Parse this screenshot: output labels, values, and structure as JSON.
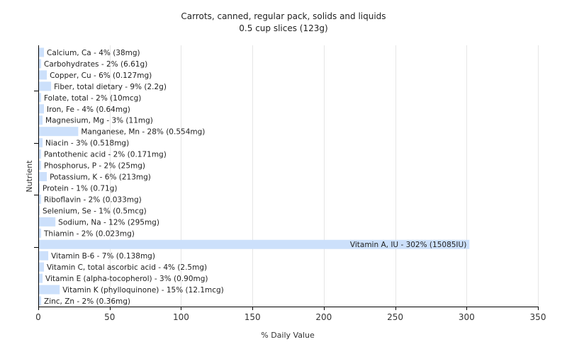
{
  "chart_data": {
    "type": "bar",
    "orientation": "horizontal",
    "title": "Carrots, canned, regular pack, solids and liquids",
    "subtitle": "0.5 cup slices (123g)",
    "xlabel": "% Daily Value",
    "ylabel": "Nutrient",
    "xlim": [
      0,
      350
    ],
    "xticks": [
      0,
      50,
      100,
      150,
      200,
      250,
      300,
      350
    ],
    "grid": "vertical",
    "bar_color": "#cce0fb",
    "categories": [
      "Calcium, Ca",
      "Carbohydrates",
      "Copper, Cu",
      "Fiber, total dietary",
      "Folate, total",
      "Iron, Fe",
      "Magnesium, Mg",
      "Manganese, Mn",
      "Niacin",
      "Pantothenic acid",
      "Phosphorus, P",
      "Potassium, K",
      "Protein",
      "Riboflavin",
      "Selenium, Se",
      "Sodium, Na",
      "Thiamin",
      "Vitamin A, IU",
      "Vitamin B-6",
      "Vitamin C, total ascorbic acid",
      "Vitamin E (alpha-tocopherol)",
      "Vitamin K (phylloquinone)",
      "Zinc, Zn"
    ],
    "values": [
      4,
      2,
      6,
      9,
      2,
      4,
      3,
      28,
      3,
      2,
      2,
      6,
      1,
      2,
      1,
      12,
      2,
      302,
      7,
      4,
      3,
      15,
      2
    ],
    "labels": [
      "Calcium, Ca - 4% (38mg)",
      "Carbohydrates - 2% (6.61g)",
      "Copper, Cu - 6% (0.127mg)",
      "Fiber, total dietary - 9% (2.2g)",
      "Folate, total - 2% (10mcg)",
      "Iron, Fe - 4% (0.64mg)",
      "Magnesium, Mg - 3% (11mg)",
      "Manganese, Mn - 28% (0.554mg)",
      "Niacin - 3% (0.518mg)",
      "Pantothenic acid - 2% (0.171mg)",
      "Phosphorus, P - 2% (25mg)",
      "Potassium, K - 6% (213mg)",
      "Protein - 1% (0.71g)",
      "Riboflavin - 2% (0.033mg)",
      "Selenium, Se - 1% (0.5mcg)",
      "Sodium, Na - 12% (295mg)",
      "Thiamin - 2% (0.023mg)",
      "Vitamin A, IU - 302% (15085IU)",
      "Vitamin B-6 - 7% (0.138mg)",
      "Vitamin C, total ascorbic acid - 4% (2.5mg)",
      "Vitamin E (alpha-tocopherol) - 3% (0.90mg)",
      "Vitamin K (phylloquinone) - 15% (12.1mcg)",
      "Zinc, Zn - 2% (0.36mg)"
    ]
  }
}
